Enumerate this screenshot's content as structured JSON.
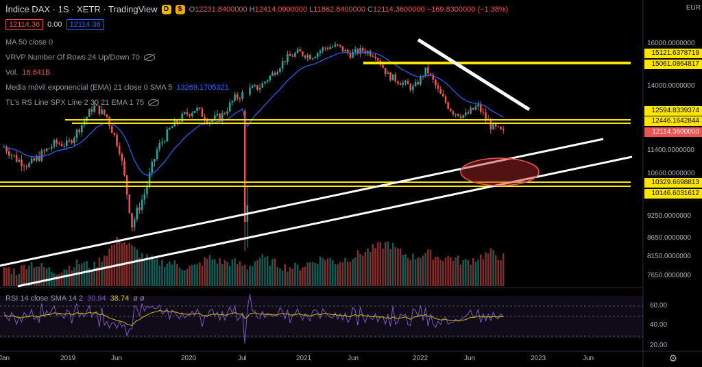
{
  "header": {
    "title": "Índice DAX · 1S · XETR · TradingView",
    "ohlc": {
      "o_label": "O",
      "o": "12231.8400000",
      "h_label": "H",
      "h": "12414.0900000",
      "l_label": "L",
      "l": "11862.8400000",
      "c_label": "C",
      "c": "12114.3600000",
      "change": "−169.8300000 (−1.38%)"
    },
    "bid": "12114.36",
    "spread": "0.00",
    "ask": "12114.36"
  },
  "indicators": [
    {
      "label": "MA 50 close 0",
      "value": ""
    },
    {
      "label": "VRVP Number Of Rows 24 Up/Down 70",
      "value": ""
    },
    {
      "label": "Vol.",
      "value": "16.641B"
    },
    {
      "label": "Media móvil exponencial (EMA) 21 close 0 SMA 5",
      "value": "13269.1705321"
    },
    {
      "label": "TL's RS Line SPX Line 2 30 21 EMA 1 75",
      "value": ""
    }
  ],
  "rsi": {
    "label": "RSI 14 close SMA 14 2",
    "v1": "30.94",
    "v2": "38.74",
    "v3": "ø ø"
  },
  "currency": "EUR",
  "price_axis": [
    "16000.0000000",
    "14000.0000000",
    "11400.0000000",
    "10600.0000000",
    "9250.0000000",
    "8650.0000000",
    "8150.0000000",
    "7650.0000000"
  ],
  "price_tags": [
    {
      "text": "15121.6378719",
      "kind": "y"
    },
    {
      "text": "15061.0864817",
      "kind": "y"
    },
    {
      "text": "12594.8339374",
      "kind": "y"
    },
    {
      "text": "12446.1642844",
      "kind": "y"
    },
    {
      "text": "12114.3600000",
      "kind": "r"
    },
    {
      "text": "10329.6698813",
      "kind": "y"
    },
    {
      "text": "10146.6031612",
      "kind": "y"
    }
  ],
  "rsi_axis": [
    "60.00",
    "40.00",
    "20.00"
  ],
  "time_axis": [
    "Jan",
    "2019",
    "Jun",
    "2020",
    "Jul",
    "2021",
    "Jun",
    "2022",
    "Jun",
    "2023",
    "Jun"
  ],
  "colors": {
    "up": "#26a69a",
    "down": "#ef5350",
    "hline": "#ffe600",
    "ema": "#2962ff",
    "rsi": "#7e57c2",
    "rsi_ma": "#d4c000"
  },
  "chart_data": {
    "type": "candlestick",
    "weekly_close_approx": [
      11550,
      11100,
      10900,
      11300,
      11700,
      11650,
      12400,
      13200,
      12800,
      11500,
      9000,
      10000,
      11500,
      12300,
      12800,
      13100,
      12600,
      12800,
      13500,
      13800,
      14000,
      14600,
      15300,
      15600,
      15400,
      15800,
      15900,
      15500,
      15700,
      15500,
      14500,
      14200,
      13900,
      14800,
      13700,
      13000,
      12800,
      13200,
      12400,
      12100
    ],
    "volume_approx": [
      3,
      2,
      4,
      3,
      2,
      3,
      4,
      3,
      6,
      9,
      7,
      5,
      4,
      4,
      3,
      3,
      5,
      4,
      4,
      3,
      5,
      4,
      3,
      3,
      4,
      5,
      4,
      5,
      6,
      7,
      8,
      6,
      5,
      6,
      5,
      5,
      4,
      5,
      6,
      5
    ]
  }
}
